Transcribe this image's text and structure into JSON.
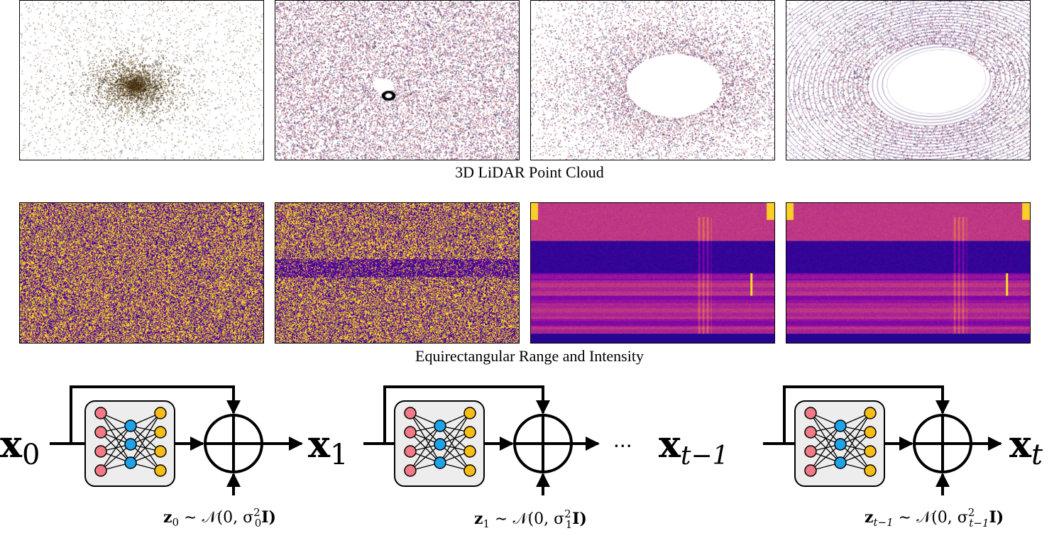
{
  "point_cloud_caption": "3D LiDAR Point Cloud",
  "range_caption": "Equirectangular Range and Intensity",
  "colors": {
    "node_input": "#f07a86",
    "node_hidden": "#1ea3e8",
    "node_output": "#f5bd16",
    "network_bg": "#ededed",
    "stroke": "#000000"
  },
  "point_cloud_panels": [
    {
      "name": "step-noise"
    },
    {
      "name": "step-early"
    },
    {
      "name": "step-mid"
    },
    {
      "name": "step-final"
    }
  ],
  "range_panels": [
    {
      "name": "noise"
    },
    {
      "name": "partial-noise"
    },
    {
      "name": "range-image"
    },
    {
      "name": "range-image-final"
    }
  ],
  "diagram": {
    "states": [
      {
        "base": "x",
        "sub": "0"
      },
      {
        "base": "x",
        "sub": "1"
      },
      {
        "base": "x",
        "sub": "t−1"
      },
      {
        "base": "x",
        "sub": "t"
      }
    ],
    "ellipsis": "···",
    "noise_labels": [
      {
        "z": "z",
        "zsub": "0",
        "sim": "∼",
        "dist": "𝒩(0, σ",
        "sigsub": "0",
        "sigsup": "2",
        "tail": "I)"
      },
      {
        "z": "z",
        "zsub": "1",
        "sim": "∼",
        "dist": "𝒩(0, σ",
        "sigsub": "1",
        "sigsup": "2",
        "tail": "I)"
      },
      {
        "z": "z",
        "zsub": "t−1",
        "sim": "∼",
        "dist": "𝒩(0, σ",
        "sigsub": "t−1",
        "sigsup": "2",
        "tail": "I)"
      }
    ]
  }
}
